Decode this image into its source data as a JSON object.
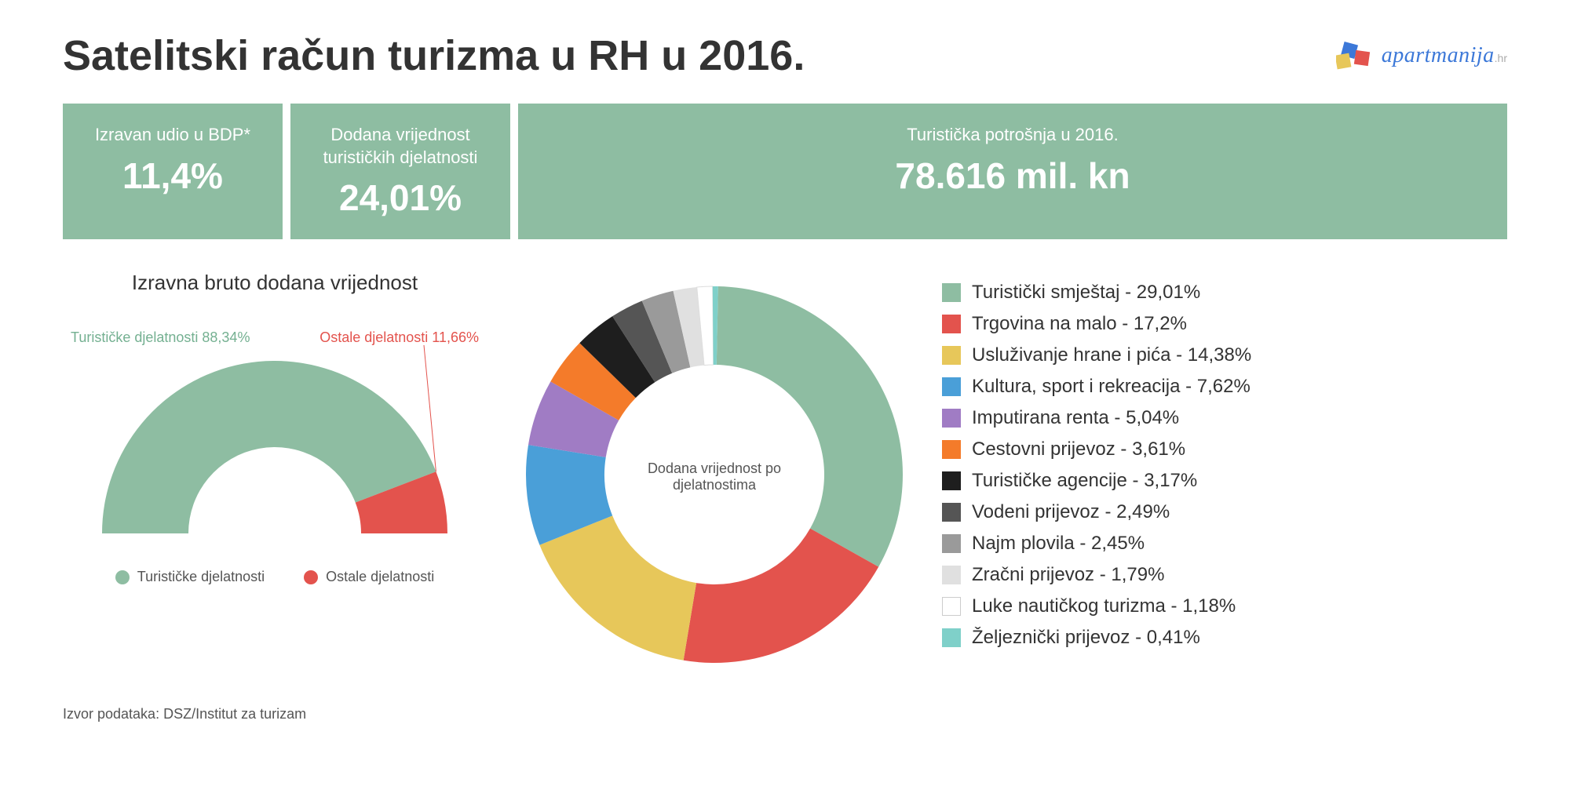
{
  "title": "Satelitski račun turizma u RH u 2016.",
  "logo": {
    "name": "apartmanija",
    "suffix": ".hr"
  },
  "stats": [
    {
      "label": "Izravan udio u BDP*",
      "value": "11,4%"
    },
    {
      "label": "Dodana vrijednost turističkih djelatnosti",
      "value": "24,01%"
    },
    {
      "label": "Turistička potrošnja u 2016.",
      "value": "78.616 mil. kn"
    }
  ],
  "stats_bar": {
    "background_color": "#8ebda2",
    "text_color": "#ffffff"
  },
  "gauge": {
    "type": "semi-donut",
    "title": "Izravna bruto dodana vrijednost",
    "segments": [
      {
        "label": "Turističke djelatnosti",
        "value": 88.34,
        "color": "#8ebda2",
        "callout": "Turističke djelatnosti 88,34%",
        "callout_color": "#74b091"
      },
      {
        "label": "Ostale djelatnosti",
        "value": 11.66,
        "color": "#e3534d",
        "callout": "Ostale djelatnosti 11,66%",
        "callout_color": "#e3534d"
      }
    ],
    "inner_radius": 110,
    "outer_radius": 220,
    "background_color": "#ffffff"
  },
  "donut": {
    "type": "donut",
    "center_label": "Dodana vrijednost po djelatnostima",
    "inner_radius": 140,
    "outer_radius": 240,
    "background_color": "#ffffff",
    "label_fontsize": 24,
    "segments": [
      {
        "label": "Turistički smještaj",
        "value": 29.01,
        "color": "#8ebda2",
        "display": "Turistički smještaj - 29,01%"
      },
      {
        "label": "Trgovina na malo",
        "value": 17.2,
        "color": "#e3534d",
        "display": "Trgovina na malo - 17,2%"
      },
      {
        "label": "Usluživanje hrane i pića",
        "value": 14.38,
        "color": "#e7c75a",
        "display": "Usluživanje hrane i pića - 14,38%"
      },
      {
        "label": "Kultura, sport i rekreacija",
        "value": 7.62,
        "color": "#4a9fd8",
        "display": "Kultura, sport i rekreacija - 7,62%"
      },
      {
        "label": "Imputirana renta",
        "value": 5.04,
        "color": "#a07cc4",
        "display": "Imputirana renta - 5,04%"
      },
      {
        "label": "Cestovni prijevoz",
        "value": 3.61,
        "color": "#f47b2a",
        "display": "Cestovni prijevoz - 3,61%"
      },
      {
        "label": "Turističke agencije",
        "value": 3.17,
        "color": "#1e1e1e",
        "display": "Turističke agencije - 3,17%"
      },
      {
        "label": "Vodeni prijevoz",
        "value": 2.49,
        "color": "#555555",
        "display": "Vodeni prijevoz - 2,49%"
      },
      {
        "label": "Najm plovila",
        "value": 2.45,
        "color": "#9a9a9a",
        "display": "Najm plovila - 2,45%"
      },
      {
        "label": "Zračni prijevoz",
        "value": 1.79,
        "color": "#e0e0e0",
        "display": "Zračni prijevoz - 1,79%"
      },
      {
        "label": "Luke nautičkog turizma",
        "value": 1.18,
        "color": "#ffffff",
        "display": "Luke nautičkog turizma - 1,18%"
      },
      {
        "label": "Željeznički prijevoz",
        "value": 0.41,
        "color": "#7fd0c9",
        "display": "Željeznički prijevoz - 0,41%"
      }
    ]
  },
  "source": "Izvor podataka: DSZ/Institut za turizam"
}
